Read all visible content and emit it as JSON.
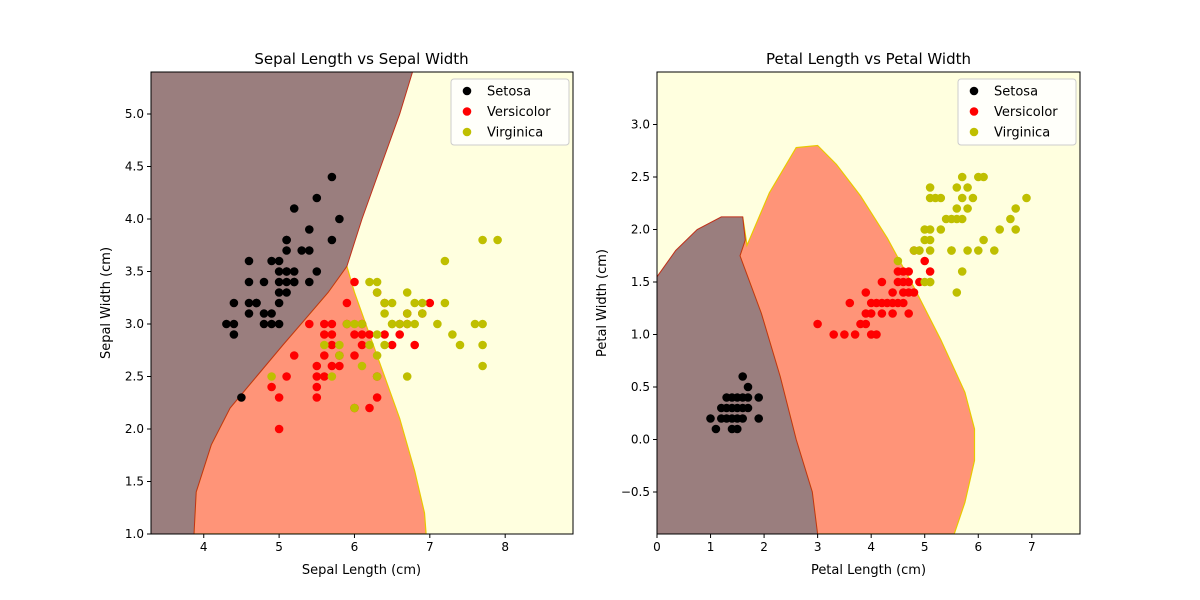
{
  "colors": {
    "setosa": "#000000",
    "versicolor": "#ff0000",
    "virginica": "#bfbf00",
    "region_setosa": "#9a7e7e",
    "region_versicolor": "#ff9478",
    "region_virginica": "#ffffdf",
    "boundary": "#e8c800"
  },
  "chart_data": [
    {
      "type": "scatter",
      "title": "Sepal Length vs Sepal Width",
      "xlabel": "Sepal Length (cm)",
      "ylabel": "Sepal Width (cm)",
      "xlim": [
        3.3,
        8.9
      ],
      "ylim": [
        1.0,
        5.4
      ],
      "xticks": [
        "4",
        "5",
        "6",
        "7",
        "8"
      ],
      "xtick_values": [
        4,
        5,
        6,
        7,
        8
      ],
      "yticks": [
        "1.0",
        "1.5",
        "2.0",
        "2.5",
        "3.0",
        "3.5",
        "4.0",
        "4.5",
        "5.0"
      ],
      "ytick_values": [
        1.0,
        1.5,
        2.0,
        2.5,
        3.0,
        3.5,
        4.0,
        4.5,
        5.0
      ],
      "legend_position": "top-right",
      "series": [
        {
          "name": "Setosa",
          "color_key": "setosa",
          "points": [
            [
              4.3,
              3.0
            ],
            [
              4.4,
              3.0
            ],
            [
              4.4,
              2.9
            ],
            [
              4.4,
              3.2
            ],
            [
              4.5,
              2.3
            ],
            [
              4.6,
              3.1
            ],
            [
              4.6,
              3.4
            ],
            [
              4.6,
              3.6
            ],
            [
              4.6,
              3.2
            ],
            [
              4.7,
              3.2
            ],
            [
              4.7,
              3.2
            ],
            [
              4.8,
              3.4
            ],
            [
              4.8,
              3.0
            ],
            [
              4.8,
              3.1
            ],
            [
              4.9,
              3.0
            ],
            [
              4.9,
              3.1
            ],
            [
              4.9,
              3.6
            ],
            [
              5.0,
              3.6
            ],
            [
              5.0,
              3.4
            ],
            [
              5.0,
              3.0
            ],
            [
              5.0,
              3.3
            ],
            [
              5.0,
              3.5
            ],
            [
              5.0,
              3.2
            ],
            [
              5.1,
              3.5
            ],
            [
              5.1,
              3.8
            ],
            [
              5.1,
              3.7
            ],
            [
              5.1,
              3.3
            ],
            [
              5.1,
              3.4
            ],
            [
              5.1,
              3.8
            ],
            [
              5.2,
              3.5
            ],
            [
              5.2,
              3.4
            ],
            [
              5.2,
              4.1
            ],
            [
              5.3,
              3.7
            ],
            [
              5.4,
              3.9
            ],
            [
              5.4,
              3.4
            ],
            [
              5.4,
              3.7
            ],
            [
              5.5,
              4.2
            ],
            [
              5.5,
              3.5
            ],
            [
              5.7,
              4.4
            ],
            [
              5.7,
              3.8
            ],
            [
              5.8,
              4.0
            ],
            [
              5.2,
              3.4
            ],
            [
              5.1,
              3.5
            ]
          ]
        },
        {
          "name": "Versicolor",
          "color_key": "versicolor",
          "points": [
            [
              4.9,
              2.4
            ],
            [
              5.0,
              2.0
            ],
            [
              5.0,
              2.3
            ],
            [
              5.1,
              2.5
            ],
            [
              5.2,
              2.7
            ],
            [
              5.4,
              3.0
            ],
            [
              5.5,
              2.3
            ],
            [
              5.5,
              2.4
            ],
            [
              5.5,
              2.5
            ],
            [
              5.5,
              2.6
            ],
            [
              5.6,
              2.9
            ],
            [
              5.6,
              3.0
            ],
            [
              5.6,
              2.5
            ],
            [
              5.6,
              2.7
            ],
            [
              5.7,
              2.8
            ],
            [
              5.7,
              2.6
            ],
            [
              5.7,
              3.0
            ],
            [
              5.7,
              2.9
            ],
            [
              5.8,
              2.7
            ],
            [
              5.8,
              2.6
            ],
            [
              5.9,
              3.0
            ],
            [
              5.9,
              3.2
            ],
            [
              6.0,
              2.2
            ],
            [
              6.0,
              2.9
            ],
            [
              6.0,
              2.7
            ],
            [
              6.0,
              3.4
            ],
            [
              6.1,
              2.9
            ],
            [
              6.1,
              2.8
            ],
            [
              6.1,
              3.0
            ],
            [
              6.2,
              2.2
            ],
            [
              6.2,
              2.9
            ],
            [
              6.3,
              2.3
            ],
            [
              6.3,
              2.5
            ],
            [
              6.3,
              3.3
            ],
            [
              6.4,
              3.2
            ],
            [
              6.4,
              2.9
            ],
            [
              6.5,
              2.8
            ],
            [
              6.6,
              2.9
            ],
            [
              6.6,
              3.0
            ],
            [
              6.7,
              3.1
            ],
            [
              6.7,
              3.0
            ],
            [
              6.8,
              2.8
            ],
            [
              6.9,
              3.1
            ],
            [
              7.0,
              3.2
            ]
          ]
        },
        {
          "name": "Virginica",
          "color_key": "virginica",
          "points": [
            [
              4.9,
              2.5
            ],
            [
              5.6,
              2.8
            ],
            [
              5.7,
              2.5
            ],
            [
              5.8,
              2.7
            ],
            [
              5.8,
              2.8
            ],
            [
              5.9,
              3.0
            ],
            [
              6.0,
              2.2
            ],
            [
              6.0,
              3.0
            ],
            [
              6.1,
              3.0
            ],
            [
              6.1,
              2.6
            ],
            [
              6.2,
              2.8
            ],
            [
              6.2,
              3.4
            ],
            [
              6.3,
              3.3
            ],
            [
              6.3,
              2.9
            ],
            [
              6.3,
              2.5
            ],
            [
              6.3,
              2.7
            ],
            [
              6.3,
              3.4
            ],
            [
              6.4,
              2.8
            ],
            [
              6.4,
              3.2
            ],
            [
              6.4,
              3.1
            ],
            [
              6.5,
              3.0
            ],
            [
              6.5,
              3.2
            ],
            [
              6.7,
              2.5
            ],
            [
              6.7,
              3.3
            ],
            [
              6.7,
              3.0
            ],
            [
              6.7,
              3.1
            ],
            [
              6.8,
              3.0
            ],
            [
              6.8,
              3.2
            ],
            [
              6.9,
              3.2
            ],
            [
              6.9,
              3.1
            ],
            [
              7.1,
              3.0
            ],
            [
              7.2,
              3.6
            ],
            [
              7.2,
              3.2
            ],
            [
              7.3,
              2.9
            ],
            [
              7.4,
              2.8
            ],
            [
              7.6,
              3.0
            ],
            [
              7.7,
              3.8
            ],
            [
              7.7,
              2.6
            ],
            [
              7.7,
              2.8
            ],
            [
              7.7,
              3.0
            ],
            [
              7.9,
              3.8
            ],
            [
              6.5,
              3.0
            ],
            [
              6.6,
              3.0
            ]
          ]
        }
      ]
    },
    {
      "type": "scatter",
      "title": "Petal Length vs Petal Width",
      "xlabel": "Petal Length (cm)",
      "ylabel": "Petal Width (cm)",
      "xlim": [
        0.0,
        7.9
      ],
      "ylim": [
        -0.9,
        3.5
      ],
      "xticks": [
        "0",
        "1",
        "2",
        "3",
        "4",
        "5",
        "6",
        "7"
      ],
      "xtick_values": [
        0,
        1,
        2,
        3,
        4,
        5,
        6,
        7
      ],
      "yticks": [
        "−0.5",
        "0.0",
        "0.5",
        "1.0",
        "1.5",
        "2.0",
        "2.5",
        "3.0"
      ],
      "ytick_values": [
        -0.5,
        0.0,
        0.5,
        1.0,
        1.5,
        2.0,
        2.5,
        3.0
      ],
      "legend_position": "top-right",
      "series": [
        {
          "name": "Setosa",
          "color_key": "setosa",
          "points": [
            [
              1.0,
              0.2
            ],
            [
              1.1,
              0.1
            ],
            [
              1.2,
              0.2
            ],
            [
              1.3,
              0.2
            ],
            [
              1.3,
              0.3
            ],
            [
              1.3,
              0.4
            ],
            [
              1.4,
              0.2
            ],
            [
              1.4,
              0.1
            ],
            [
              1.4,
              0.3
            ],
            [
              1.5,
              0.2
            ],
            [
              1.5,
              0.1
            ],
            [
              1.5,
              0.4
            ],
            [
              1.5,
              0.3
            ],
            [
              1.6,
              0.2
            ],
            [
              1.6,
              0.6
            ],
            [
              1.6,
              0.4
            ],
            [
              1.7,
              0.5
            ],
            [
              1.7,
              0.3
            ],
            [
              1.7,
              0.4
            ],
            [
              1.9,
              0.2
            ],
            [
              1.9,
              0.4
            ],
            [
              1.2,
              0.3
            ],
            [
              1.4,
              0.4
            ],
            [
              1.6,
              0.3
            ]
          ]
        },
        {
          "name": "Versicolor",
          "color_key": "versicolor",
          "points": [
            [
              3.0,
              1.1
            ],
            [
              3.3,
              1.0
            ],
            [
              3.5,
              1.0
            ],
            [
              3.6,
              1.3
            ],
            [
              3.7,
              1.0
            ],
            [
              3.8,
              1.1
            ],
            [
              3.9,
              1.1
            ],
            [
              3.9,
              1.2
            ],
            [
              3.9,
              1.4
            ],
            [
              4.0,
              1.0
            ],
            [
              4.0,
              1.3
            ],
            [
              4.0,
              1.2
            ],
            [
              4.1,
              1.3
            ],
            [
              4.1,
              1.0
            ],
            [
              4.2,
              1.3
            ],
            [
              4.2,
              1.5
            ],
            [
              4.2,
              1.2
            ],
            [
              4.3,
              1.3
            ],
            [
              4.4,
              1.4
            ],
            [
              4.4,
              1.2
            ],
            [
              4.4,
              1.3
            ],
            [
              4.5,
              1.5
            ],
            [
              4.5,
              1.3
            ],
            [
              4.5,
              1.6
            ],
            [
              4.6,
              1.3
            ],
            [
              4.6,
              1.5
            ],
            [
              4.6,
              1.4
            ],
            [
              4.7,
              1.4
            ],
            [
              4.7,
              1.6
            ],
            [
              4.7,
              1.2
            ],
            [
              4.8,
              1.8
            ],
            [
              4.8,
              1.4
            ],
            [
              4.9,
              1.5
            ],
            [
              5.0,
              1.7
            ],
            [
              5.1,
              1.6
            ],
            [
              4.7,
              1.5
            ],
            [
              4.6,
              1.6
            ]
          ]
        },
        {
          "name": "Virginica",
          "color_key": "virginica",
          "points": [
            [
              4.5,
              1.7
            ],
            [
              4.8,
              1.8
            ],
            [
              4.9,
              1.8
            ],
            [
              5.0,
              1.5
            ],
            [
              5.0,
              2.0
            ],
            [
              5.0,
              1.9
            ],
            [
              5.1,
              2.3
            ],
            [
              5.1,
              1.9
            ],
            [
              5.1,
              2.0
            ],
            [
              5.1,
              1.8
            ],
            [
              5.1,
              2.4
            ],
            [
              5.1,
              1.5
            ],
            [
              5.2,
              2.3
            ],
            [
              5.3,
              2.3
            ],
            [
              5.4,
              2.1
            ],
            [
              5.5,
              2.1
            ],
            [
              5.5,
              1.8
            ],
            [
              5.6,
              2.4
            ],
            [
              5.6,
              1.4
            ],
            [
              5.6,
              2.2
            ],
            [
              5.6,
              2.1
            ],
            [
              5.7,
              2.3
            ],
            [
              5.7,
              2.1
            ],
            [
              5.8,
              1.8
            ],
            [
              5.8,
              2.2
            ],
            [
              5.9,
              2.3
            ],
            [
              6.0,
              2.5
            ],
            [
              6.0,
              1.8
            ],
            [
              6.1,
              2.5
            ],
            [
              6.1,
              1.9
            ],
            [
              6.3,
              1.8
            ],
            [
              6.4,
              2.0
            ],
            [
              6.6,
              2.1
            ],
            [
              6.7,
              2.2
            ],
            [
              6.7,
              2.0
            ],
            [
              6.9,
              2.3
            ],
            [
              5.3,
              2.0
            ],
            [
              5.7,
              2.5
            ],
            [
              5.8,
              2.4
            ],
            [
              5.5,
              1.8
            ],
            [
              4.9,
              1.8
            ],
            [
              5.7,
              1.6
            ],
            [
              5.1,
              1.5
            ]
          ]
        }
      ]
    }
  ]
}
